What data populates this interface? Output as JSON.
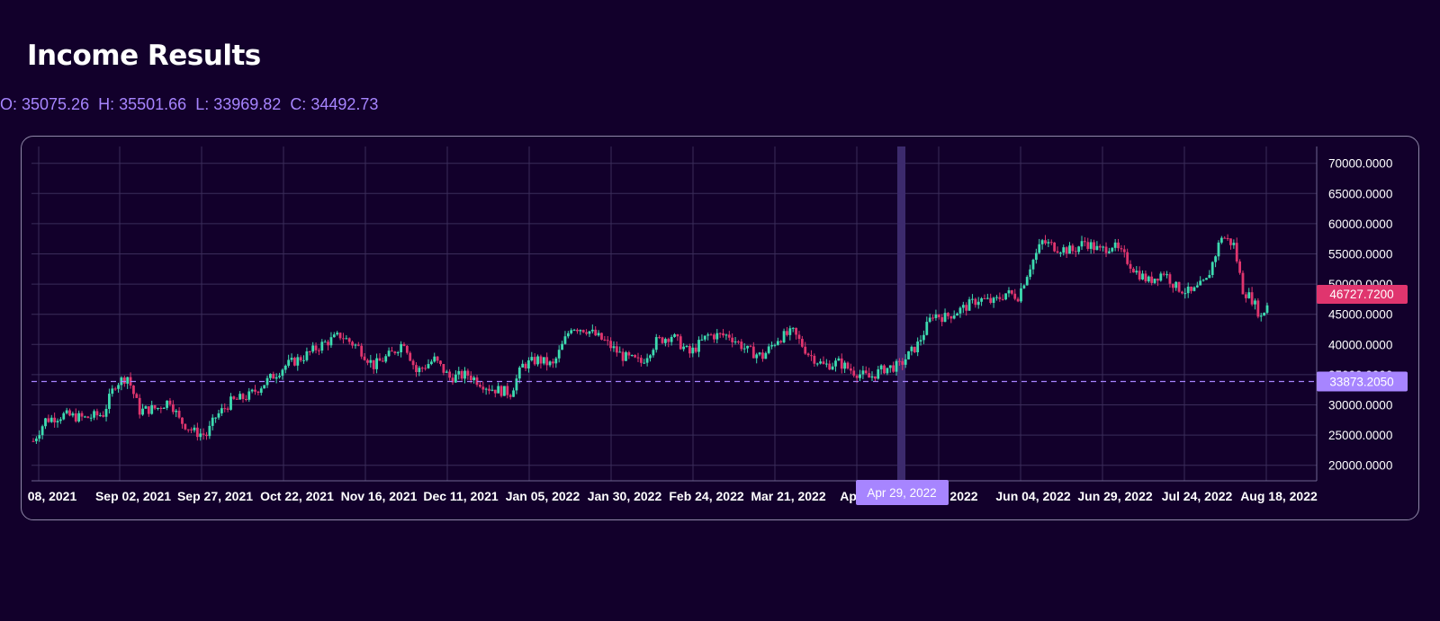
{
  "page": {
    "title": "Income Results",
    "ohlc": {
      "open": "O: 35075.26",
      "high": "H: 35501.66",
      "low": "L: 33969.82",
      "close": "C: 34492.73"
    }
  },
  "colors": {
    "background": "#12002b",
    "up": "#3ddbb0",
    "down": "#e0356e",
    "accent": "#a785ff",
    "grid": "#3a2d5a",
    "crosshair_band": "#3c2a6d"
  },
  "chart_data": {
    "type": "candlestick",
    "title": "Income Results",
    "ylim": [
      15000,
      70000
    ],
    "y_ticks": [
      20000,
      25000,
      30000,
      35000,
      40000,
      45000,
      50000,
      55000,
      60000,
      65000,
      70000
    ],
    "y_tick_labels": [
      "20000.0000",
      "25000.0000",
      "30000.0000",
      "35000.0000",
      "40000.0000",
      "45000.0000",
      "50000.0000",
      "55000.0000",
      "60000.0000",
      "65000.0000",
      "70000.0000"
    ],
    "x_tick_labels": [
      "08, 2021",
      "Sep 02, 2021",
      "Sep 27, 2021",
      "Oct 22, 2021",
      "Nov 16, 2021",
      "Dec 11, 2021",
      "Jan 05, 2022",
      "Jan 30, 2022",
      "Feb 24, 2022",
      "Mar 21, 2022",
      "Apr 15",
      "2022",
      "Jun 04, 2022",
      "Jun 29, 2022",
      "Jul 24, 2022",
      "Aug 18, 2022"
    ],
    "grid": true,
    "last_price_label": "46727.7200",
    "crosshair": {
      "price": 33873.205,
      "price_label": "33873.2050",
      "date_label": "Apr 29, 2022"
    },
    "trend": [
      [
        "2021-08-08",
        24000
      ],
      [
        "2021-08-12",
        27500
      ],
      [
        "2021-08-18",
        28300
      ],
      [
        "2021-08-25",
        27800
      ],
      [
        "2021-08-31",
        28500
      ],
      [
        "2021-09-04",
        33500
      ],
      [
        "2021-09-08",
        34700
      ],
      [
        "2021-09-12",
        29000
      ],
      [
        "2021-09-18",
        29500
      ],
      [
        "2021-09-22",
        30800
      ],
      [
        "2021-09-25",
        27500
      ],
      [
        "2021-09-30",
        25500
      ],
      [
        "2021-10-04",
        25000
      ],
      [
        "2021-10-07",
        28000
      ],
      [
        "2021-10-12",
        30500
      ],
      [
        "2021-10-18",
        31500
      ],
      [
        "2021-10-24",
        34000
      ],
      [
        "2021-10-30",
        36500
      ],
      [
        "2021-11-05",
        38000
      ],
      [
        "2021-11-11",
        40000
      ],
      [
        "2021-11-17",
        41500
      ],
      [
        "2021-11-23",
        39500
      ],
      [
        "2021-11-28",
        36500
      ],
      [
        "2021-12-04",
        38500
      ],
      [
        "2021-12-08",
        40500
      ],
      [
        "2021-12-12",
        35500
      ],
      [
        "2021-12-18",
        37500
      ],
      [
        "2021-12-23",
        34500
      ],
      [
        "2021-12-29",
        35000
      ],
      [
        "2022-01-05",
        32800
      ],
      [
        "2022-01-12",
        32000
      ],
      [
        "2022-01-16",
        36500
      ],
      [
        "2022-01-21",
        37500
      ],
      [
        "2022-01-26",
        36500
      ],
      [
        "2022-02-01",
        43000
      ],
      [
        "2022-02-06",
        42500
      ],
      [
        "2022-02-12",
        40500
      ],
      [
        "2022-02-18",
        38000
      ],
      [
        "2022-02-24",
        37000
      ],
      [
        "2022-03-01",
        40500
      ],
      [
        "2022-03-06",
        41500
      ],
      [
        "2022-03-12",
        38500
      ],
      [
        "2022-03-18",
        41500
      ],
      [
        "2022-03-25",
        41500
      ],
      [
        "2022-03-31",
        39000
      ],
      [
        "2022-04-05",
        38000
      ],
      [
        "2022-04-10",
        41000
      ],
      [
        "2022-04-15",
        42000
      ],
      [
        "2022-04-20",
        38500
      ],
      [
        "2022-04-25",
        36500
      ],
      [
        "2022-04-30",
        37000
      ],
      [
        "2022-05-05",
        35500
      ],
      [
        "2022-05-10",
        34500
      ],
      [
        "2022-05-15",
        36000
      ],
      [
        "2022-05-20",
        36500
      ],
      [
        "2022-05-26",
        40000
      ],
      [
        "2022-05-31",
        45000
      ],
      [
        "2022-06-04",
        44500
      ],
      [
        "2022-06-10",
        46000
      ],
      [
        "2022-06-15",
        47500
      ],
      [
        "2022-06-20",
        47000
      ],
      [
        "2022-06-24",
        48500
      ],
      [
        "2022-06-28",
        48000
      ],
      [
        "2022-07-02",
        53000
      ],
      [
        "2022-07-06",
        57000
      ],
      [
        "2022-07-11",
        56000
      ],
      [
        "2022-07-16",
        55500
      ],
      [
        "2022-07-20",
        57000
      ],
      [
        "2022-07-25",
        55500
      ],
      [
        "2022-07-29",
        56500
      ],
      [
        "2022-08-02",
        54500
      ],
      [
        "2022-08-06",
        52000
      ],
      [
        "2022-08-10",
        50500
      ],
      [
        "2022-08-15",
        52000
      ],
      [
        "2022-08-19",
        49500
      ],
      [
        "2022-08-24",
        48500
      ],
      [
        "2022-08-29",
        50500
      ],
      [
        "2022-09-03",
        58000
      ],
      [
        "2022-09-07",
        56500
      ],
      [
        "2022-09-10",
        49000
      ],
      [
        "2022-09-13",
        47500
      ],
      [
        "2022-09-16",
        44500
      ],
      [
        "2022-09-18",
        46700
      ]
    ]
  }
}
